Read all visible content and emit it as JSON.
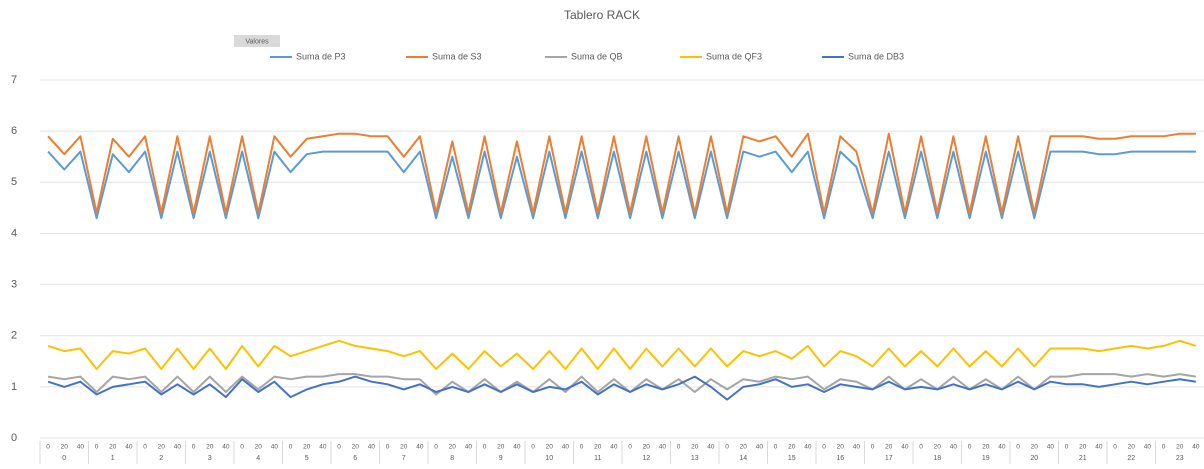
{
  "chart_data": {
    "type": "line",
    "title": "Tablero RACK",
    "field_button": "Valores",
    "categories": [
      "0",
      "20",
      "40",
      "0",
      "20",
      "40",
      "0",
      "20",
      "40",
      "0",
      "20",
      "40",
      "0",
      "20",
      "40",
      "0",
      "20",
      "40",
      "0",
      "20",
      "40",
      "0",
      "20",
      "40",
      "0",
      "20",
      "40",
      "0",
      "20",
      "40",
      "0",
      "20",
      "40",
      "0",
      "20",
      "40",
      "0",
      "20",
      "40",
      "0",
      "20",
      "40",
      "0",
      "20",
      "40",
      "0",
      "20",
      "40",
      "0",
      "20",
      "40",
      "0",
      "20",
      "40",
      "0",
      "20",
      "40",
      "0",
      "20",
      "40",
      "0",
      "20",
      "40",
      "0",
      "20",
      "40",
      "0",
      "20",
      "40",
      "0",
      "20",
      "40"
    ],
    "category_groups": [
      "0",
      "1",
      "2",
      "3",
      "4",
      "5",
      "6",
      "7",
      "8",
      "9",
      "10",
      "11",
      "12",
      "13",
      "14",
      "15",
      "16",
      "17",
      "18",
      "19",
      "20",
      "21",
      "22",
      "23"
    ],
    "ylim": [
      0,
      7
    ],
    "yticks": [
      0,
      1,
      2,
      3,
      4,
      5,
      6,
      7
    ],
    "grid": true,
    "legend": "top",
    "series": [
      {
        "name": "Suma de P3",
        "color": "#5b9bd5",
        "values": [
          5.6,
          5.25,
          5.6,
          4.3,
          5.55,
          5.2,
          5.6,
          4.3,
          5.6,
          4.3,
          5.6,
          4.3,
          5.6,
          4.3,
          5.6,
          5.2,
          5.55,
          5.6,
          5.6,
          5.6,
          5.6,
          5.6,
          5.2,
          5.6,
          4.3,
          5.5,
          4.3,
          5.6,
          4.3,
          5.5,
          4.3,
          5.6,
          4.3,
          5.6,
          4.3,
          5.6,
          4.3,
          5.6,
          4.3,
          5.6,
          4.3,
          5.6,
          4.3,
          5.6,
          5.5,
          5.6,
          5.2,
          5.6,
          4.3,
          5.6,
          5.3,
          4.3,
          5.6,
          4.3,
          5.6,
          4.3,
          5.6,
          4.3,
          5.6,
          4.3,
          5.6,
          4.3,
          5.6,
          5.6,
          5.6,
          5.55,
          5.55,
          5.6,
          5.6,
          5.6,
          5.6,
          5.6
        ]
      },
      {
        "name": "Suma de S3",
        "color": "#ed7d31",
        "values": [
          5.9,
          5.55,
          5.9,
          4.4,
          5.85,
          5.5,
          5.9,
          4.4,
          5.9,
          4.4,
          5.9,
          4.4,
          5.9,
          4.4,
          5.9,
          5.5,
          5.85,
          5.9,
          5.95,
          5.95,
          5.9,
          5.9,
          5.5,
          5.9,
          4.4,
          5.8,
          4.4,
          5.9,
          4.4,
          5.8,
          4.4,
          5.9,
          4.4,
          5.9,
          4.4,
          5.9,
          4.4,
          5.9,
          4.4,
          5.9,
          4.4,
          5.9,
          4.4,
          5.9,
          5.8,
          5.9,
          5.5,
          5.95,
          4.4,
          5.9,
          5.6,
          4.4,
          5.95,
          4.4,
          5.9,
          4.4,
          5.9,
          4.4,
          5.9,
          4.4,
          5.9,
          4.4,
          5.9,
          5.9,
          5.9,
          5.85,
          5.85,
          5.9,
          5.9,
          5.9,
          5.95,
          5.95
        ]
      },
      {
        "name": "Suma de QB",
        "color": "#a5a5a5",
        "values": [
          1.2,
          1.15,
          1.2,
          0.9,
          1.2,
          1.15,
          1.2,
          0.9,
          1.2,
          0.9,
          1.2,
          0.9,
          1.2,
          0.95,
          1.2,
          1.15,
          1.2,
          1.2,
          1.25,
          1.25,
          1.2,
          1.2,
          1.15,
          1.15,
          0.85,
          1.1,
          0.9,
          1.15,
          0.9,
          1.1,
          0.9,
          1.15,
          0.9,
          1.2,
          0.9,
          1.15,
          0.9,
          1.15,
          0.95,
          1.15,
          0.9,
          1.15,
          0.95,
          1.15,
          1.1,
          1.2,
          1.15,
          1.2,
          0.95,
          1.15,
          1.1,
          0.95,
          1.2,
          0.95,
          1.15,
          0.95,
          1.2,
          0.95,
          1.15,
          0.95,
          1.2,
          0.95,
          1.2,
          1.2,
          1.25,
          1.25,
          1.25,
          1.2,
          1.25,
          1.2,
          1.25,
          1.2
        ]
      },
      {
        "name": "Suma de QF3",
        "color": "#ffc000",
        "values": [
          1.8,
          1.7,
          1.75,
          1.35,
          1.7,
          1.65,
          1.75,
          1.35,
          1.75,
          1.35,
          1.75,
          1.35,
          1.8,
          1.4,
          1.8,
          1.6,
          1.7,
          1.8,
          1.9,
          1.8,
          1.75,
          1.7,
          1.6,
          1.7,
          1.35,
          1.65,
          1.35,
          1.7,
          1.4,
          1.65,
          1.35,
          1.7,
          1.35,
          1.75,
          1.35,
          1.75,
          1.35,
          1.75,
          1.4,
          1.75,
          1.4,
          1.75,
          1.4,
          1.7,
          1.6,
          1.7,
          1.55,
          1.8,
          1.4,
          1.7,
          1.6,
          1.4,
          1.75,
          1.4,
          1.7,
          1.4,
          1.75,
          1.4,
          1.7,
          1.4,
          1.75,
          1.4,
          1.75,
          1.75,
          1.75,
          1.7,
          1.75,
          1.8,
          1.75,
          1.8,
          1.9,
          1.8
        ]
      },
      {
        "name": "Suma de DB3",
        "color": "#4472c4",
        "values": [
          1.1,
          1.0,
          1.1,
          0.85,
          1.0,
          1.05,
          1.1,
          0.85,
          1.05,
          0.85,
          1.05,
          0.8,
          1.15,
          0.9,
          1.1,
          0.8,
          0.95,
          1.05,
          1.1,
          1.2,
          1.1,
          1.05,
          0.95,
          1.05,
          0.9,
          1.0,
          0.9,
          1.05,
          0.9,
          1.05,
          0.9,
          1.0,
          0.95,
          1.1,
          0.85,
          1.05,
          0.9,
          1.05,
          0.95,
          1.05,
          1.2,
          1.0,
          0.75,
          1.0,
          1.05,
          1.15,
          1.0,
          1.05,
          0.9,
          1.05,
          1.0,
          0.95,
          1.1,
          0.95,
          1.0,
          0.95,
          1.05,
          0.95,
          1.05,
          0.95,
          1.1,
          0.95,
          1.1,
          1.05,
          1.05,
          1.0,
          1.05,
          1.1,
          1.05,
          1.1,
          1.15,
          1.1
        ]
      }
    ]
  }
}
